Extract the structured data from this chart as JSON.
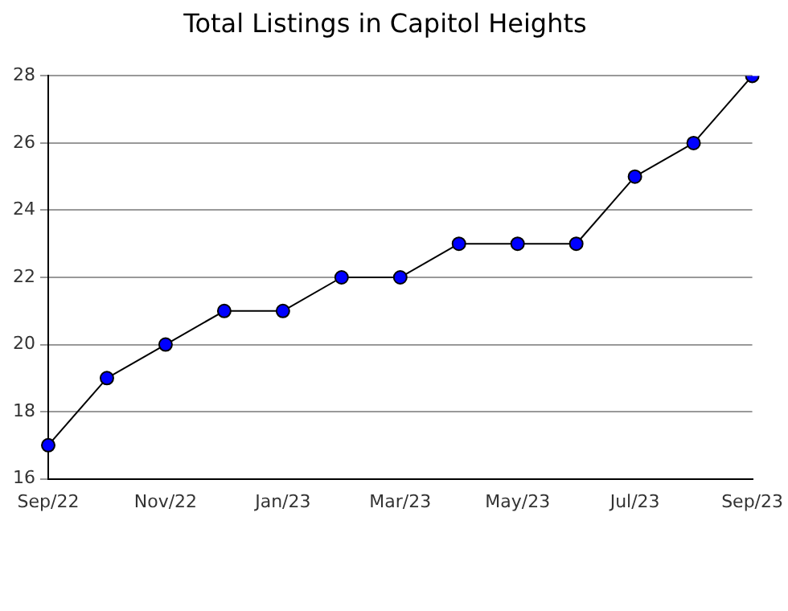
{
  "chart_data": {
    "type": "line",
    "title": "Total Listings in Capitol Heights",
    "categories": [
      "Sep/22",
      null,
      "Nov/22",
      null,
      "Jan/23",
      null,
      "Mar/23",
      null,
      "May/23",
      null,
      "Jul/23",
      null,
      "Sep/23"
    ],
    "series": [
      {
        "color": "#0000ff",
        "values": [
          17,
          19,
          20,
          21,
          21,
          22,
          22,
          23,
          23,
          23,
          25,
          26,
          28
        ]
      }
    ],
    "ylim": [
      16,
      28
    ],
    "yticks": [
      16,
      18,
      20,
      22,
      24,
      26,
      28
    ],
    "grid": "y",
    "legend": false,
    "marker": "circle",
    "line_style": "solid"
  }
}
